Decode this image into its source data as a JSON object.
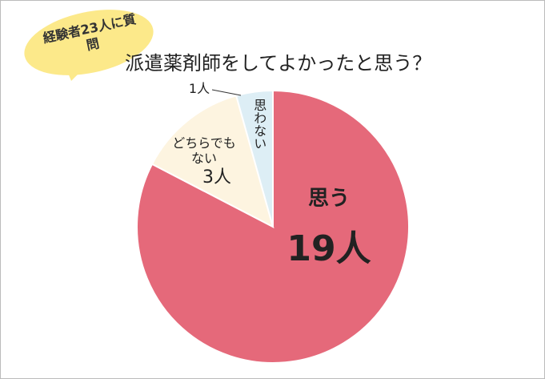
{
  "chart_data": {
    "type": "pie",
    "title": "派遣薬剤師をしてよかったと思う？",
    "badge": "経験者23人に質問",
    "categories": [
      "思う",
      "どちらでもない",
      "思わない"
    ],
    "values": [
      19,
      3,
      1
    ],
    "value_labels": [
      "19人",
      "3人",
      "1人"
    ],
    "colors": [
      "#e5697a",
      "#fdf4e0",
      "#ddeef5"
    ]
  }
}
